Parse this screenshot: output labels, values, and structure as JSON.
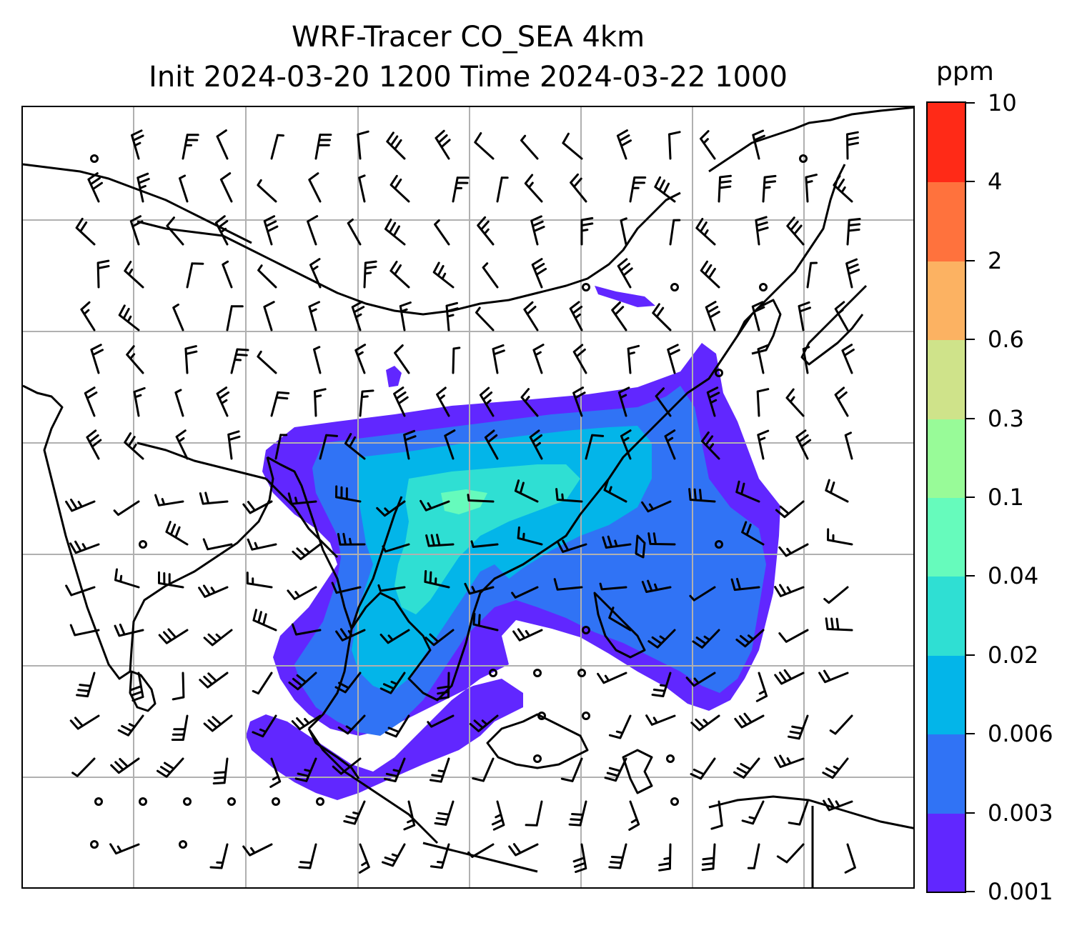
{
  "title": {
    "line1": "WRF-Tracer CO_SEA 4km",
    "line2": "Init 2024-03-20 1200 Time 2024-03-22 1000"
  },
  "colorbar": {
    "unit": "ppm",
    "tick_labels": [
      "0.001",
      "0.003",
      "0.006",
      "0.02",
      "0.04",
      "0.1",
      "0.3",
      "0.6",
      "2",
      "4",
      "10"
    ],
    "colors": [
      "#6127ff",
      "#3073f5",
      "#03b5e9",
      "#2fdfd3",
      "#66fbbc",
      "#98fb98",
      "#cfe38a",
      "#fcb262",
      "#ff723d",
      "#ff2a17"
    ]
  },
  "map": {
    "gridline_color": "#b0b0b0",
    "coastline_color": "#000000",
    "field_name": "CO_SEA tracer",
    "wind_symbol": "barbs",
    "calm_symbol": "circle"
  }
}
